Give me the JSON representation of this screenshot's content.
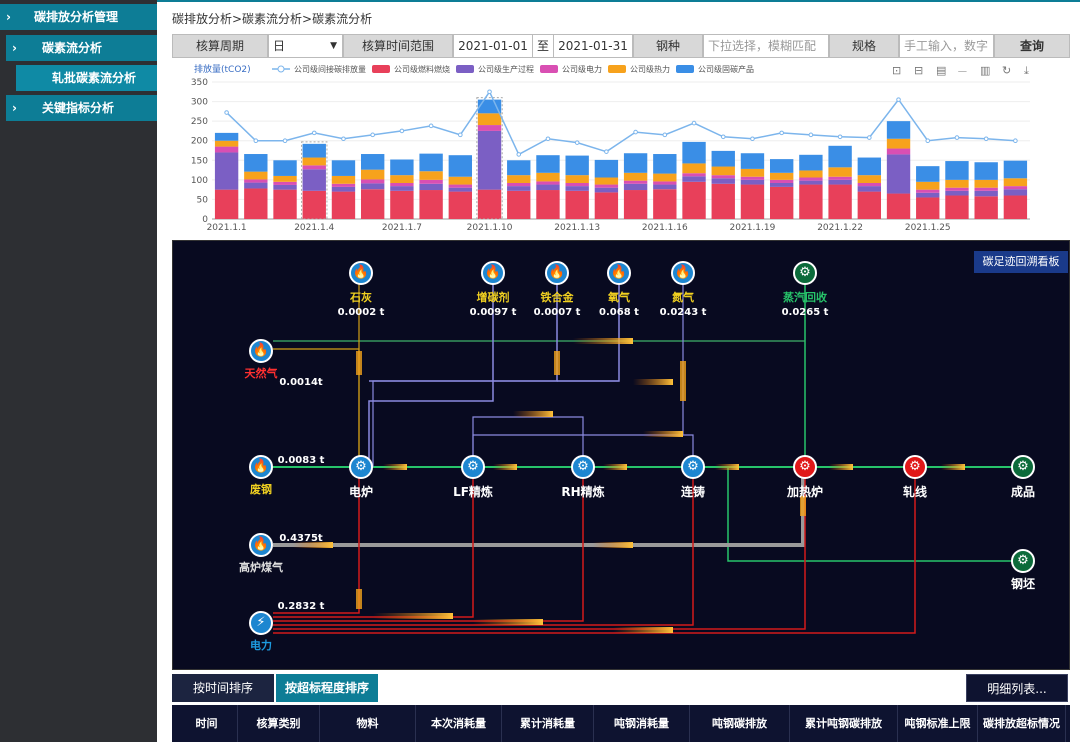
{
  "sidebar": {
    "items": [
      {
        "label": "碳排放分析管理"
      },
      {
        "label": "碳素流分析"
      },
      {
        "label": "轧批碳素流分析"
      },
      {
        "label": "关键指标分析"
      }
    ]
  },
  "breadcrumb": "碳排放分析>碳素流分析>碳素流分析",
  "filter": {
    "period_label": "核算周期",
    "period_value": "日",
    "range_label": "核算时间范围",
    "date_from": "2021-01-01",
    "date_sep": "至",
    "date_to": "2021-01-31",
    "steel_label": "钢种",
    "steel_placeholder": "下拉选择，模糊匹配",
    "spec_label": "规格",
    "spec_placeholder": "手工输入，数字",
    "query_label": "查询"
  },
  "chart_data": {
    "type": "bar",
    "title": "",
    "ylabel": "排放量(tCO2)",
    "ylim": [
      0,
      350
    ],
    "yticks": [
      0,
      50,
      100,
      150,
      200,
      250,
      300,
      350
    ],
    "categories": [
      "2021.1.1",
      "2021.1.2",
      "2021.1.3",
      "2021.1.4",
      "2021.1.5",
      "2021.1.6",
      "2021.1.7",
      "2021.1.8",
      "2021.1.9",
      "2021.1.10",
      "2021.1.11",
      "2021.1.12",
      "2021.1.13",
      "2021.1.14",
      "2021.1.15",
      "2021.1.16",
      "2021.1.17",
      "2021.1.18",
      "2021.1.19",
      "2021.1.20",
      "2021.1.21",
      "2021.1.22",
      "2021.1.23",
      "2021.1.24",
      "2021.1.25",
      "2021.1.26",
      "2021.1.27",
      "2021.1.28"
    ],
    "xtick_labels": [
      "2021.1.1",
      "2021.1.4",
      "2021.1.7",
      "2021.1.10",
      "2021.1.13",
      "2021.1.16",
      "2021.1.19",
      "2021.1.22",
      "2021.1.25"
    ],
    "legend": [
      "公司级间接碳排放量",
      "公司级燃料燃烧",
      "公司级生产过程",
      "公司级电力",
      "公司级热力",
      "公司级固碳产品"
    ],
    "colors": [
      "#7cb5ec",
      "#e8405a",
      "#7b5fc4",
      "#d94fb3",
      "#f7a21c",
      "#3a8ee6"
    ],
    "stacks": [
      {
        "name": "公司级燃料燃烧",
        "values": [
          75,
          78,
          75,
          72,
          70,
          76,
          72,
          74,
          70,
          75,
          72,
          74,
          72,
          68,
          74,
          76,
          95,
          90,
          88,
          82,
          88,
          88,
          70,
          65,
          55,
          60,
          58,
          60
        ]
      },
      {
        "name": "公司级生产过程",
        "values": [
          95,
          15,
          12,
          55,
          12,
          15,
          12,
          16,
          10,
          150,
          12,
          14,
          12,
          12,
          16,
          12,
          14,
          14,
          12,
          10,
          10,
          12,
          14,
          100,
          12,
          12,
          14,
          16
        ]
      },
      {
        "name": "公司级电力",
        "values": [
          15,
          8,
          8,
          10,
          8,
          10,
          8,
          10,
          8,
          15,
          8,
          8,
          8,
          8,
          8,
          8,
          8,
          8,
          8,
          8,
          8,
          8,
          8,
          15,
          8,
          8,
          8,
          8
        ]
      },
      {
        "name": "公司级热力",
        "values": [
          15,
          20,
          15,
          20,
          20,
          25,
          20,
          22,
          20,
          30,
          20,
          22,
          20,
          18,
          20,
          20,
          25,
          22,
          20,
          18,
          18,
          24,
          20,
          25,
          20,
          20,
          20,
          20
        ]
      },
      {
        "name": "公司级固碳产品",
        "values": [
          20,
          45,
          40,
          35,
          40,
          40,
          40,
          45,
          55,
          35,
          38,
          45,
          50,
          45,
          50,
          50,
          55,
          40,
          40,
          35,
          40,
          55,
          45,
          45,
          40,
          48,
          45,
          45
        ]
      }
    ],
    "line": {
      "name": "公司级间接碳排放量",
      "values": [
        272,
        200,
        200,
        220,
        205,
        215,
        225,
        238,
        215,
        325,
        165,
        205,
        195,
        172,
        222,
        215,
        245,
        210,
        205,
        220,
        215,
        210,
        208,
        305,
        200,
        208,
        205,
        200
      ]
    },
    "toolbox": [
      "rect-zoom",
      "zoom-reset",
      "data-view",
      "line-switch",
      "bar-switch",
      "restore",
      "save-image"
    ]
  },
  "flow": {
    "board_button": "碳足迹回溯看板",
    "top_nodes": [
      {
        "name": "石灰",
        "value": "0.0002 t"
      },
      {
        "name": "增碳剂",
        "value": "0.0097 t"
      },
      {
        "name": "铁合金",
        "value": "0.0007 t"
      },
      {
        "name": "氧气",
        "value": "0.068 t"
      },
      {
        "name": "氮气",
        "value": "0.0243 t"
      },
      {
        "name": "蒸汽回收",
        "value": "0.0265 t"
      }
    ],
    "left_nodes": [
      {
        "name": "天然气",
        "value": "0.0014t"
      },
      {
        "name": "废钢",
        "value": "0.0083 t"
      },
      {
        "name": "高炉煤气",
        "value": "0.4375t"
      },
      {
        "name": "电力",
        "value": "0.2832 t"
      }
    ],
    "process_nodes": [
      "电炉",
      "LF精炼",
      "RH精炼",
      "连铸",
      "加热炉",
      "轧线",
      "成品"
    ],
    "side_nodes": [
      "钢坯"
    ]
  },
  "tabs": {
    "by_time": "按时间排序",
    "by_exceed": "按超标程度排序",
    "detail": "明细列表..."
  },
  "table": {
    "headers": [
      "时间",
      "核算类别",
      "物料",
      "本次消耗量",
      "累计消耗量",
      "吨钢消耗量",
      "吨钢碳排放",
      "累计吨钢碳排放",
      "吨钢标准上限",
      "碳排放超标情况"
    ]
  }
}
